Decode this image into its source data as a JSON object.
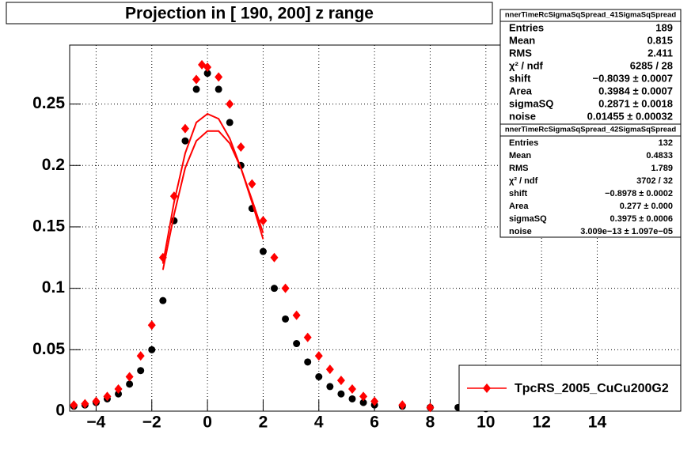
{
  "chart_data": {
    "type": "scatter",
    "title": "Projection in [ 190, 200] z range",
    "xlim": [
      -4.95,
      17
    ],
    "ylim": [
      0,
      0.298
    ],
    "xticks": [
      {
        "value": -4,
        "label": "−4"
      },
      {
        "value": -2,
        "label": "−2"
      },
      0,
      2,
      4,
      6,
      8,
      10,
      12,
      14
    ],
    "yticks": [
      0,
      0.05,
      0.1,
      0.15,
      0.2,
      0.25
    ],
    "grid": true,
    "legend": "bottom-right",
    "series": [
      {
        "color": "#000000",
        "marker": "circle",
        "x": [
          -4.8,
          -4.4,
          -4,
          -3.6,
          -3.2,
          -2.8,
          -2.4,
          -2,
          -1.6,
          -1.2,
          -0.8,
          -0.4,
          0,
          0.4,
          0.8,
          1.2,
          1.6,
          2,
          2.4,
          2.8,
          3.2,
          3.6,
          4,
          4.4,
          4.8,
          5.2,
          5.6,
          6,
          7,
          8,
          9,
          10
        ],
        "values": [
          0.004,
          0.005,
          0.007,
          0.01,
          0.014,
          0.022,
          0.033,
          0.05,
          0.09,
          0.155,
          0.22,
          0.262,
          0.275,
          0.262,
          0.235,
          0.2,
          0.165,
          0.13,
          0.1,
          0.075,
          0.055,
          0.04,
          0.028,
          0.02,
          0.014,
          0.01,
          0.007,
          0.005,
          0.004,
          0.003,
          0.003,
          0.002
        ]
      },
      {
        "name": "TpcRS_2005_CuCu200G2",
        "color": "#ff0000",
        "marker": "diamond",
        "x": [
          -4.8,
          -4.4,
          -4,
          -3.6,
          -3.2,
          -2.8,
          -2.4,
          -2,
          -1.6,
          -1.2,
          -0.8,
          -0.4,
          -0.2,
          0,
          0.4,
          0.8,
          1.2,
          1.6,
          2,
          2.4,
          2.8,
          3.2,
          3.6,
          4,
          4.4,
          4.8,
          5.2,
          5.6,
          6,
          7,
          8
        ],
        "values": [
          0.005,
          0.006,
          0.008,
          0.012,
          0.018,
          0.028,
          0.045,
          0.07,
          0.125,
          0.175,
          0.23,
          0.27,
          0.282,
          0.28,
          0.272,
          0.25,
          0.215,
          0.185,
          0.155,
          0.125,
          0.1,
          0.078,
          0.06,
          0.045,
          0.034,
          0.025,
          0.018,
          0.012,
          0.008,
          0.005,
          0.003
        ]
      },
      {
        "color": "#ff0000",
        "marker": "line",
        "x": [
          -1.6,
          -1.2,
          -0.8,
          -0.4,
          0,
          0.4,
          0.8,
          1.2,
          1.6,
          2
        ],
        "values": [
          0.12,
          0.17,
          0.21,
          0.235,
          0.242,
          0.238,
          0.222,
          0.198,
          0.17,
          0.14
        ]
      },
      {
        "color": "#ff0000",
        "marker": "line",
        "x": [
          -1.6,
          -1.2,
          -0.8,
          -0.4,
          0,
          0.4,
          0.8,
          1.2,
          1.6,
          2
        ],
        "values": [
          0.115,
          0.16,
          0.198,
          0.22,
          0.228,
          0.228,
          0.218,
          0.198,
          0.172,
          0.145
        ]
      }
    ],
    "stats": [
      {
        "title": "nnerTimeRcSigmaSqSpread_41SigmaSqSpread",
        "rows": [
          [
            "Entries",
            "189"
          ],
          [
            "Mean",
            "0.815"
          ],
          [
            "RMS",
            "2.411"
          ],
          [
            "χ² / ndf",
            "6285 / 28"
          ],
          [
            "shift",
            "−0.8039 ± 0.0007"
          ],
          [
            "Area",
            "0.3984 ± 0.0007"
          ],
          [
            "sigmaSQ",
            "0.2871 ± 0.0018"
          ],
          [
            "noise",
            "0.01455 ± 0.00032"
          ]
        ]
      },
      {
        "title": "nnerTimeRcSigmaSqSpread_42SigmaSqSpread",
        "rows": [
          [
            "Entries",
            "132"
          ],
          [
            "Mean",
            "0.4833"
          ],
          [
            "RMS",
            "1.789"
          ],
          [
            "χ² / ndf",
            "3702 / 32"
          ],
          [
            "shift",
            "−0.8978 ± 0.0002"
          ],
          [
            "Area",
            "0.277 ± 0.000"
          ],
          [
            "sigmaSQ",
            "0.3975 ± 0.0006"
          ],
          [
            "noise",
            "3.009e−13 ± 1.097e−05"
          ]
        ]
      }
    ]
  }
}
